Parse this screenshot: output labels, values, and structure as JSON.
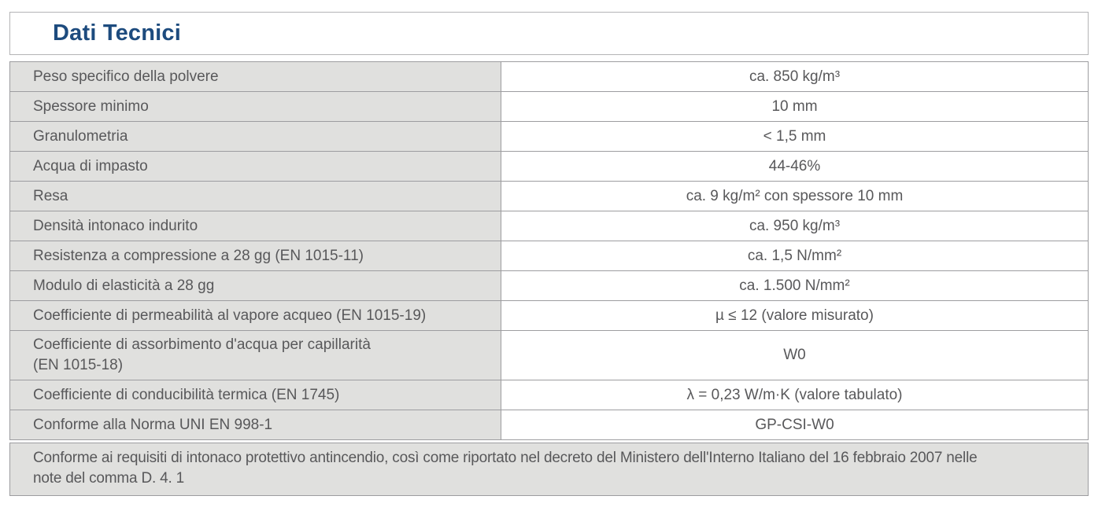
{
  "section": {
    "title": "Dati Tecnici"
  },
  "table": {
    "rows": [
      {
        "label": "Peso specifico della polvere",
        "value": "ca. 850 kg/m³"
      },
      {
        "label": "Spessore minimo",
        "value": "10 mm"
      },
      {
        "label": "Granulometria",
        "value": "< 1,5 mm"
      },
      {
        "label": "Acqua di impasto",
        "value": "44-46%"
      },
      {
        "label": "Resa",
        "value": "ca. 9 kg/m² con spessore 10 mm"
      },
      {
        "label": "Densità intonaco indurito",
        "value": "ca. 950 kg/m³"
      },
      {
        "label": "Resistenza a compressione a 28 gg (EN 1015-11)",
        "value": "ca. 1,5 N/mm²"
      },
      {
        "label": "Modulo di elasticità a 28 gg",
        "value": "ca. 1.500 N/mm²"
      },
      {
        "label": "Coefficiente di permeabilità al vapore acqueo (EN 1015-19)",
        "value": "µ ≤ 12 (valore misurato)"
      },
      {
        "label": "Coefficiente di assorbimento d'acqua per capillarità\n(EN 1015-18)",
        "value": "W0"
      },
      {
        "label": "Coefficiente di conducibilità termica (EN 1745)",
        "value": "λ = 0,23 W/m·K (valore tabulato)"
      },
      {
        "label": "Conforme alla Norma UNI EN 998-1",
        "value": "GP-CSI-W0"
      }
    ],
    "footer_note": "Conforme ai requisiti di intonaco protettivo antincendio, così come riportato nel decreto del Ministero dell'Interno Italiano del 16 febbraio 2007 nelle\nnote del comma D. 4. 1"
  },
  "colors": {
    "title_blue": "#1d4b7e",
    "label_cell_bg": "#e0e0de",
    "cell_border": "#9d9da0",
    "body_text": "#58585a"
  }
}
